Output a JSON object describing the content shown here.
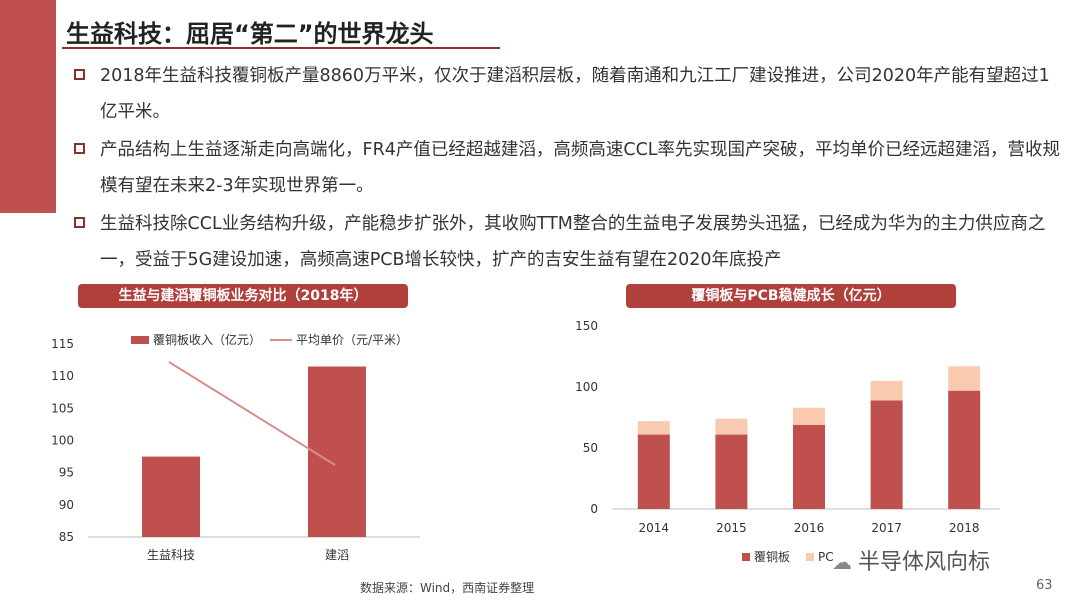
{
  "colors": {
    "accent": "#c0504d",
    "bar_main": "#c0504d",
    "bar_light": "#f9c9b0",
    "line": "#d98c8a"
  },
  "slide": {
    "title": "生益科技：屈居“第二”的世界龙头",
    "bullets": [
      "2018年生益科技覆铜板产量8860万平米，仅次于建滔积层板，随着南通和九江工厂建设推进，公司2020年产能有望超过1亿平米。",
      "产品结构上生益逐渐走向高端化，FR4产值已经超越建滔，高频高速CCL率先实现国产突破，平均单价已经远超建滔，营收规模有望在未来2-3年实现世界第一。",
      "生益科技除CCL业务结构升级，产能稳步扩张外，其收购TTM整合的生益电子发展势头迅猛，已经成为华为的主力供应商之一，受益于5G建设加速，高频高速PCB增长较快，扩产的吉安生益有望在2020年底投产"
    ],
    "source": "数据来源：Wind，西南证券整理",
    "watermark": "半导体风向标",
    "page_number": "63"
  },
  "chart_data": [
    {
      "type": "bar",
      "title": "生益与建滔覆铜板业务对比（2018年）",
      "categories": [
        "生益科技",
        "建滔"
      ],
      "series": [
        {
          "name": "覆铜板收入（亿元）",
          "type": "bar",
          "values": [
            97.5,
            111.5
          ]
        },
        {
          "name": "平均单价（元/平米）",
          "type": "line",
          "values": [
            null,
            null
          ],
          "note": "trend line declining from 生益科技 to 建滔, no secondary axis shown"
        }
      ],
      "ylim": [
        85,
        115
      ],
      "yticks": [
        85,
        90,
        95,
        100,
        105,
        110,
        115
      ],
      "legend": "top"
    },
    {
      "type": "bar",
      "stacked": true,
      "title": "覆铜板与PCB稳健成长（亿元）",
      "categories": [
        "2014",
        "2015",
        "2016",
        "2017",
        "2018"
      ],
      "series": [
        {
          "name": "覆铜板",
          "values": [
            61,
            61,
            69,
            89,
            97
          ]
        },
        {
          "name": "PC",
          "values": [
            11,
            13,
            14,
            16,
            20
          ]
        }
      ],
      "ylim": [
        0,
        150
      ],
      "yticks": [
        0,
        50,
        100,
        150
      ],
      "legend": "bottom"
    }
  ]
}
